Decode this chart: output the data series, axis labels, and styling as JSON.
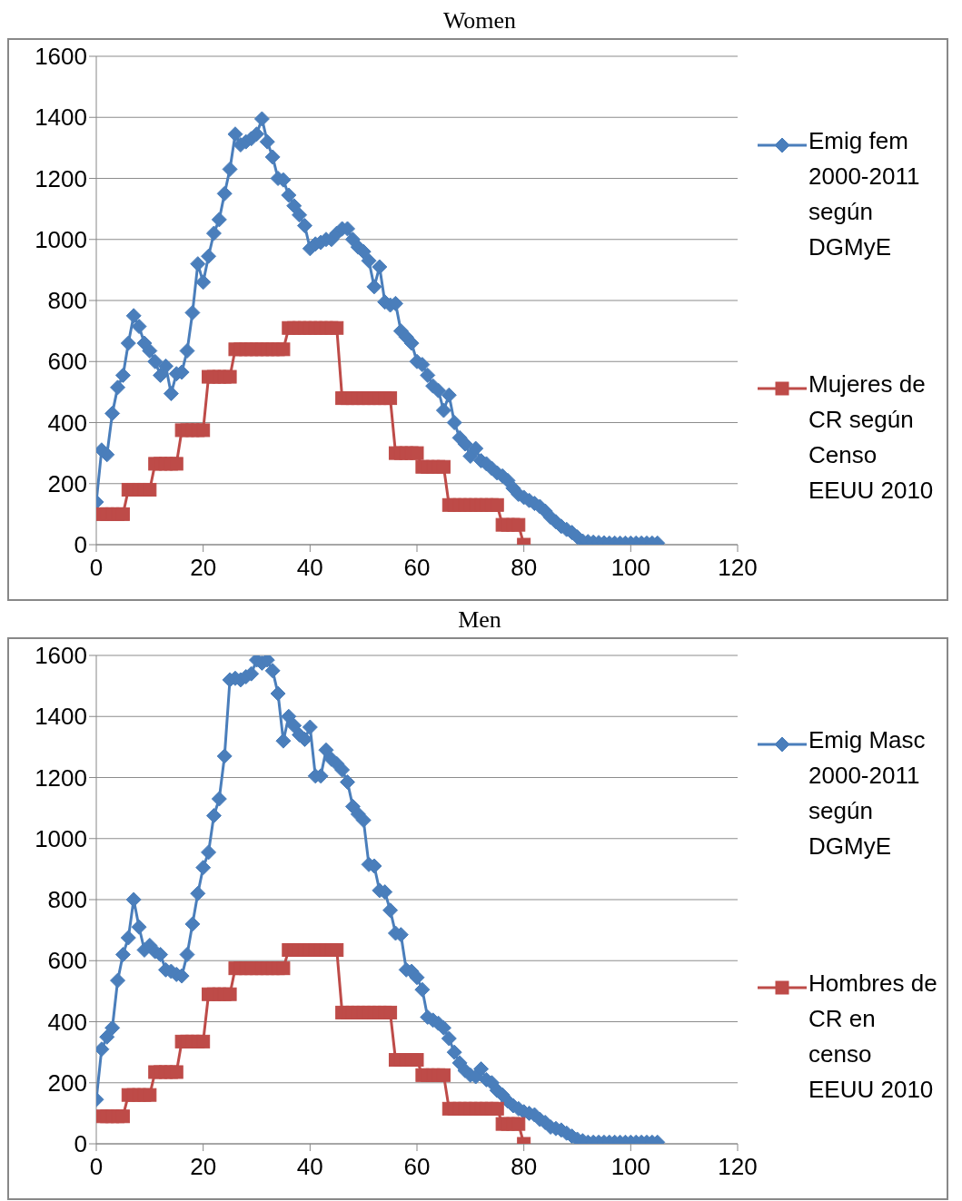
{
  "chart_data": [
    {
      "type": "line",
      "title": "Women",
      "xlim": [
        0,
        120
      ],
      "xticks": [
        0,
        20,
        40,
        60,
        80,
        100,
        120
      ],
      "ylim": [
        0,
        1600
      ],
      "yticks": [
        0,
        200,
        400,
        600,
        800,
        1000,
        1200,
        1400,
        1600
      ],
      "grid": "y",
      "legend": "right",
      "line_style": "solid",
      "series": [
        {
          "name": "Emig fem 2000-2011 según DGMyE",
          "color": "#4a7ebb",
          "marker": "diamond",
          "x": [
            0,
            1,
            2,
            3,
            4,
            5,
            6,
            7,
            8,
            9,
            10,
            11,
            12,
            13,
            14,
            15,
            16,
            17,
            18,
            19,
            20,
            21,
            22,
            23,
            24,
            25,
            26,
            27,
            28,
            29,
            30,
            31,
            32,
            33,
            34,
            35,
            36,
            37,
            38,
            39,
            40,
            41,
            42,
            43,
            44,
            45,
            46,
            47,
            48,
            49,
            50,
            51,
            52,
            53,
            54,
            55,
            56,
            57,
            58,
            59,
            60,
            61,
            62,
            63,
            64,
            65,
            66,
            67,
            68,
            69,
            70,
            71,
            72,
            73,
            74,
            75,
            76,
            77,
            78,
            79,
            80,
            81,
            82,
            83,
            84,
            85,
            86,
            87,
            88,
            89,
            90,
            91,
            92,
            93,
            94,
            95,
            96,
            97,
            98,
            99,
            100,
            101,
            102,
            103,
            104,
            105
          ],
          "values": [
            140,
            310,
            295,
            430,
            515,
            555,
            660,
            750,
            715,
            660,
            635,
            600,
            555,
            585,
            495,
            560,
            565,
            635,
            760,
            920,
            860,
            945,
            1020,
            1065,
            1150,
            1230,
            1345,
            1310,
            1320,
            1330,
            1345,
            1395,
            1320,
            1270,
            1200,
            1195,
            1145,
            1110,
            1080,
            1045,
            970,
            985,
            990,
            1000,
            1000,
            1020,
            1035,
            1035,
            1000,
            975,
            960,
            930,
            845,
            910,
            795,
            785,
            790,
            700,
            680,
            660,
            600,
            590,
            555,
            520,
            505,
            440,
            490,
            400,
            350,
            330,
            290,
            315,
            275,
            265,
            250,
            235,
            225,
            210,
            185,
            165,
            155,
            145,
            135,
            125,
            110,
            90,
            75,
            60,
            50,
            40,
            25,
            12,
            10,
            8,
            7,
            6,
            5,
            5,
            5,
            5,
            5,
            5,
            5,
            5,
            5,
            5
          ]
        },
        {
          "name": "Mujeres de CR según Censo EEUU 2010",
          "color": "#be4b48",
          "marker": "square",
          "x": [
            1,
            2,
            3,
            4,
            5,
            6,
            7,
            8,
            9,
            10,
            11,
            12,
            13,
            14,
            15,
            16,
            17,
            18,
            19,
            20,
            21,
            22,
            23,
            24,
            25,
            26,
            27,
            28,
            29,
            30,
            31,
            32,
            33,
            34,
            35,
            36,
            37,
            38,
            39,
            40,
            41,
            42,
            43,
            44,
            45,
            46,
            47,
            48,
            49,
            50,
            51,
            52,
            53,
            54,
            55,
            56,
            57,
            58,
            59,
            60,
            61,
            62,
            63,
            64,
            65,
            66,
            67,
            68,
            69,
            70,
            71,
            72,
            73,
            74,
            75,
            76,
            77,
            78,
            79,
            80
          ],
          "values": [
            100,
            100,
            100,
            100,
            100,
            180,
            180,
            180,
            180,
            180,
            265,
            265,
            265,
            265,
            265,
            375,
            375,
            375,
            375,
            375,
            550,
            550,
            550,
            550,
            550,
            640,
            640,
            640,
            640,
            640,
            640,
            640,
            640,
            640,
            640,
            710,
            710,
            710,
            710,
            710,
            710,
            710,
            710,
            710,
            710,
            480,
            480,
            480,
            480,
            480,
            480,
            480,
            480,
            480,
            480,
            300,
            300,
            300,
            300,
            300,
            255,
            255,
            255,
            255,
            255,
            130,
            130,
            130,
            130,
            130,
            130,
            130,
            130,
            130,
            130,
            65,
            65,
            65,
            65,
            0
          ]
        }
      ]
    },
    {
      "type": "line",
      "title": "Men",
      "xlim": [
        0,
        120
      ],
      "xticks": [
        0,
        20,
        40,
        60,
        80,
        100,
        120
      ],
      "ylim": [
        0,
        1600
      ],
      "yticks": [
        0,
        200,
        400,
        600,
        800,
        1000,
        1200,
        1400,
        1600
      ],
      "grid": "y",
      "legend": "right",
      "line_style": "solid",
      "series": [
        {
          "name": "Emig Masc 2000-2011 según DGMyE",
          "color": "#4a7ebb",
          "marker": "diamond",
          "x": [
            0,
            1,
            2,
            3,
            4,
            5,
            6,
            7,
            8,
            9,
            10,
            11,
            12,
            13,
            14,
            15,
            16,
            17,
            18,
            19,
            20,
            21,
            22,
            23,
            24,
            25,
            26,
            27,
            28,
            29,
            30,
            31,
            32,
            33,
            34,
            35,
            36,
            37,
            38,
            39,
            40,
            41,
            42,
            43,
            44,
            45,
            46,
            47,
            48,
            49,
            50,
            51,
            52,
            53,
            54,
            55,
            56,
            57,
            58,
            59,
            60,
            61,
            62,
            63,
            64,
            65,
            66,
            67,
            68,
            69,
            70,
            71,
            72,
            73,
            74,
            75,
            76,
            77,
            78,
            79,
            80,
            81,
            82,
            83,
            84,
            85,
            86,
            87,
            88,
            89,
            90,
            91,
            92,
            93,
            94,
            95,
            96,
            97,
            98,
            99,
            100,
            101,
            102,
            103,
            104,
            105
          ],
          "values": [
            145,
            310,
            350,
            380,
            535,
            620,
            675,
            800,
            710,
            635,
            650,
            630,
            620,
            570,
            565,
            555,
            550,
            620,
            720,
            820,
            905,
            955,
            1075,
            1130,
            1270,
            1520,
            1525,
            1520,
            1530,
            1540,
            1585,
            1575,
            1585,
            1550,
            1475,
            1320,
            1400,
            1370,
            1340,
            1325,
            1365,
            1205,
            1205,
            1290,
            1260,
            1245,
            1225,
            1185,
            1105,
            1080,
            1060,
            915,
            910,
            830,
            825,
            765,
            690,
            685,
            570,
            565,
            545,
            505,
            415,
            405,
            395,
            380,
            345,
            300,
            265,
            240,
            225,
            220,
            245,
            210,
            200,
            175,
            160,
            140,
            125,
            115,
            105,
            100,
            95,
            80,
            70,
            55,
            50,
            45,
            35,
            25,
            15,
            10,
            5,
            5,
            5,
            5,
            5,
            5,
            5,
            5,
            5,
            5,
            5,
            5,
            5,
            5
          ]
        },
        {
          "name": "Hombres de CR en censo EEUU 2010",
          "color": "#be4b48",
          "marker": "square",
          "x": [
            1,
            2,
            3,
            4,
            5,
            6,
            7,
            8,
            9,
            10,
            11,
            12,
            13,
            14,
            15,
            16,
            17,
            18,
            19,
            20,
            21,
            22,
            23,
            24,
            25,
            26,
            27,
            28,
            29,
            30,
            31,
            32,
            33,
            34,
            35,
            36,
            37,
            38,
            39,
            40,
            41,
            42,
            43,
            44,
            45,
            46,
            47,
            48,
            49,
            50,
            51,
            52,
            53,
            54,
            55,
            56,
            57,
            58,
            59,
            60,
            61,
            62,
            63,
            64,
            65,
            66,
            67,
            68,
            69,
            70,
            71,
            72,
            73,
            74,
            75,
            76,
            77,
            78,
            79,
            80
          ],
          "values": [
            90,
            90,
            90,
            90,
            90,
            160,
            160,
            160,
            160,
            160,
            235,
            235,
            235,
            235,
            235,
            335,
            335,
            335,
            335,
            335,
            490,
            490,
            490,
            490,
            490,
            575,
            575,
            575,
            575,
            575,
            575,
            575,
            575,
            575,
            575,
            635,
            635,
            635,
            635,
            635,
            635,
            635,
            635,
            635,
            635,
            430,
            430,
            430,
            430,
            430,
            430,
            430,
            430,
            430,
            430,
            275,
            275,
            275,
            275,
            275,
            225,
            225,
            225,
            225,
            225,
            115,
            115,
            115,
            115,
            115,
            115,
            115,
            115,
            115,
            115,
            65,
            65,
            65,
            65,
            0
          ]
        }
      ]
    }
  ]
}
